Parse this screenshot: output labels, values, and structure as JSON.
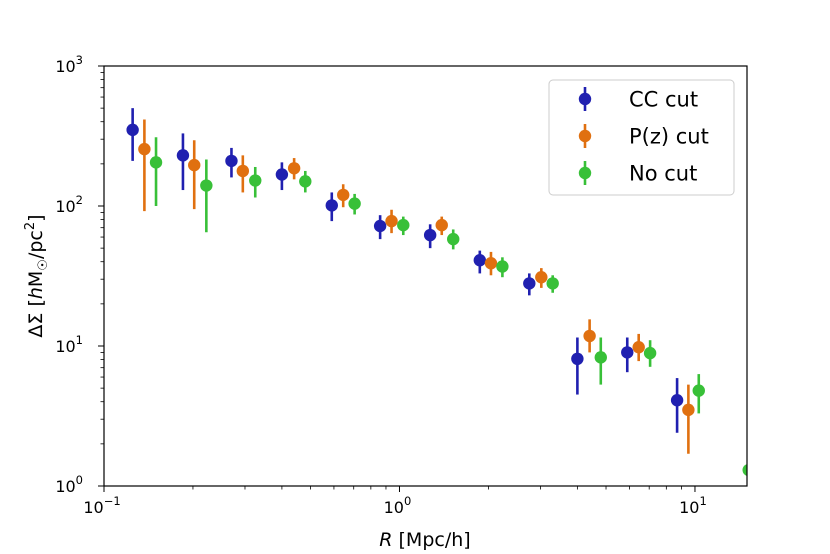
{
  "chart_data": {
    "type": "scatter",
    "xscale": "log",
    "yscale": "log",
    "xlim": [
      0.1,
      15
    ],
    "ylim": [
      1,
      1000
    ],
    "xlabel": "R [Mpc/h]",
    "ylabel": "ΔΣ [hM☉/pc²]",
    "x_ticks": [
      {
        "value": 0.1,
        "base": "10",
        "exp": "−1"
      },
      {
        "value": 1,
        "base": "10",
        "exp": "0"
      },
      {
        "value": 10,
        "base": "10",
        "exp": "1"
      }
    ],
    "y_ticks": [
      {
        "value": 1,
        "base": "10",
        "exp": "0"
      },
      {
        "value": 10,
        "base": "10",
        "exp": "1"
      },
      {
        "value": 100,
        "base": "10",
        "exp": "2"
      },
      {
        "value": 1000,
        "base": "10",
        "exp": "3"
      }
    ],
    "legend_position": "upper right",
    "series": [
      {
        "name": "CC cut",
        "color": "#2020b0",
        "points": [
          {
            "x": 0.125,
            "y": 350,
            "lo": 210,
            "hi": 500
          },
          {
            "x": 0.185,
            "y": 230,
            "lo": 130,
            "hi": 330
          },
          {
            "x": 0.27,
            "y": 210,
            "lo": 160,
            "hi": 260
          },
          {
            "x": 0.4,
            "y": 168,
            "lo": 130,
            "hi": 205
          },
          {
            "x": 0.59,
            "y": 101,
            "lo": 78,
            "hi": 125
          },
          {
            "x": 0.86,
            "y": 72,
            "lo": 58,
            "hi": 86
          },
          {
            "x": 1.27,
            "y": 62,
            "lo": 50,
            "hi": 74
          },
          {
            "x": 1.87,
            "y": 41,
            "lo": 33,
            "hi": 48
          },
          {
            "x": 2.75,
            "y": 28,
            "lo": 23,
            "hi": 33
          },
          {
            "x": 4.0,
            "y": 8.1,
            "lo": 4.5,
            "hi": 11.5
          },
          {
            "x": 5.9,
            "y": 9.0,
            "lo": 6.5,
            "hi": 11.5
          },
          {
            "x": 8.7,
            "y": 4.1,
            "lo": 2.4,
            "hi": 5.9
          }
        ]
      },
      {
        "name": "P(z) cut",
        "color": "#e07010",
        "points": [
          {
            "x": 0.137,
            "y": 255,
            "lo": 92,
            "hi": 415
          },
          {
            "x": 0.202,
            "y": 196,
            "lo": 95,
            "hi": 295
          },
          {
            "x": 0.295,
            "y": 178,
            "lo": 125,
            "hi": 230
          },
          {
            "x": 0.44,
            "y": 186,
            "lo": 155,
            "hi": 220
          },
          {
            "x": 0.645,
            "y": 120,
            "lo": 98,
            "hi": 143
          },
          {
            "x": 0.94,
            "y": 78,
            "lo": 64,
            "hi": 94
          },
          {
            "x": 1.39,
            "y": 73,
            "lo": 62,
            "hi": 84
          },
          {
            "x": 2.04,
            "y": 39,
            "lo": 32,
            "hi": 47
          },
          {
            "x": 3.02,
            "y": 31,
            "lo": 26,
            "hi": 36
          },
          {
            "x": 4.4,
            "y": 11.8,
            "lo": 9.0,
            "hi": 15.5
          },
          {
            "x": 6.45,
            "y": 9.8,
            "lo": 7.8,
            "hi": 12.2
          },
          {
            "x": 9.5,
            "y": 3.5,
            "lo": 1.7,
            "hi": 5.3
          }
        ]
      },
      {
        "name": "No cut",
        "color": "#38c038",
        "points": [
          {
            "x": 0.15,
            "y": 205,
            "lo": 100,
            "hi": 310
          },
          {
            "x": 0.222,
            "y": 140,
            "lo": 65,
            "hi": 215
          },
          {
            "x": 0.325,
            "y": 152,
            "lo": 115,
            "hi": 190
          },
          {
            "x": 0.48,
            "y": 150,
            "lo": 125,
            "hi": 178
          },
          {
            "x": 0.705,
            "y": 104,
            "lo": 87,
            "hi": 122
          },
          {
            "x": 1.03,
            "y": 73,
            "lo": 62,
            "hi": 84
          },
          {
            "x": 1.52,
            "y": 58,
            "lo": 49,
            "hi": 68
          },
          {
            "x": 2.23,
            "y": 37,
            "lo": 31,
            "hi": 43
          },
          {
            "x": 3.3,
            "y": 28,
            "lo": 24,
            "hi": 32
          },
          {
            "x": 4.8,
            "y": 8.3,
            "lo": 5.3,
            "hi": 11.5
          },
          {
            "x": 7.05,
            "y": 8.9,
            "lo": 7.1,
            "hi": 11.0
          },
          {
            "x": 10.3,
            "y": 4.8,
            "lo": 3.3,
            "hi": 6.3
          },
          {
            "x": 15.2,
            "y": 1.3,
            "lo": 1.0,
            "hi": 2.0
          }
        ]
      }
    ]
  }
}
